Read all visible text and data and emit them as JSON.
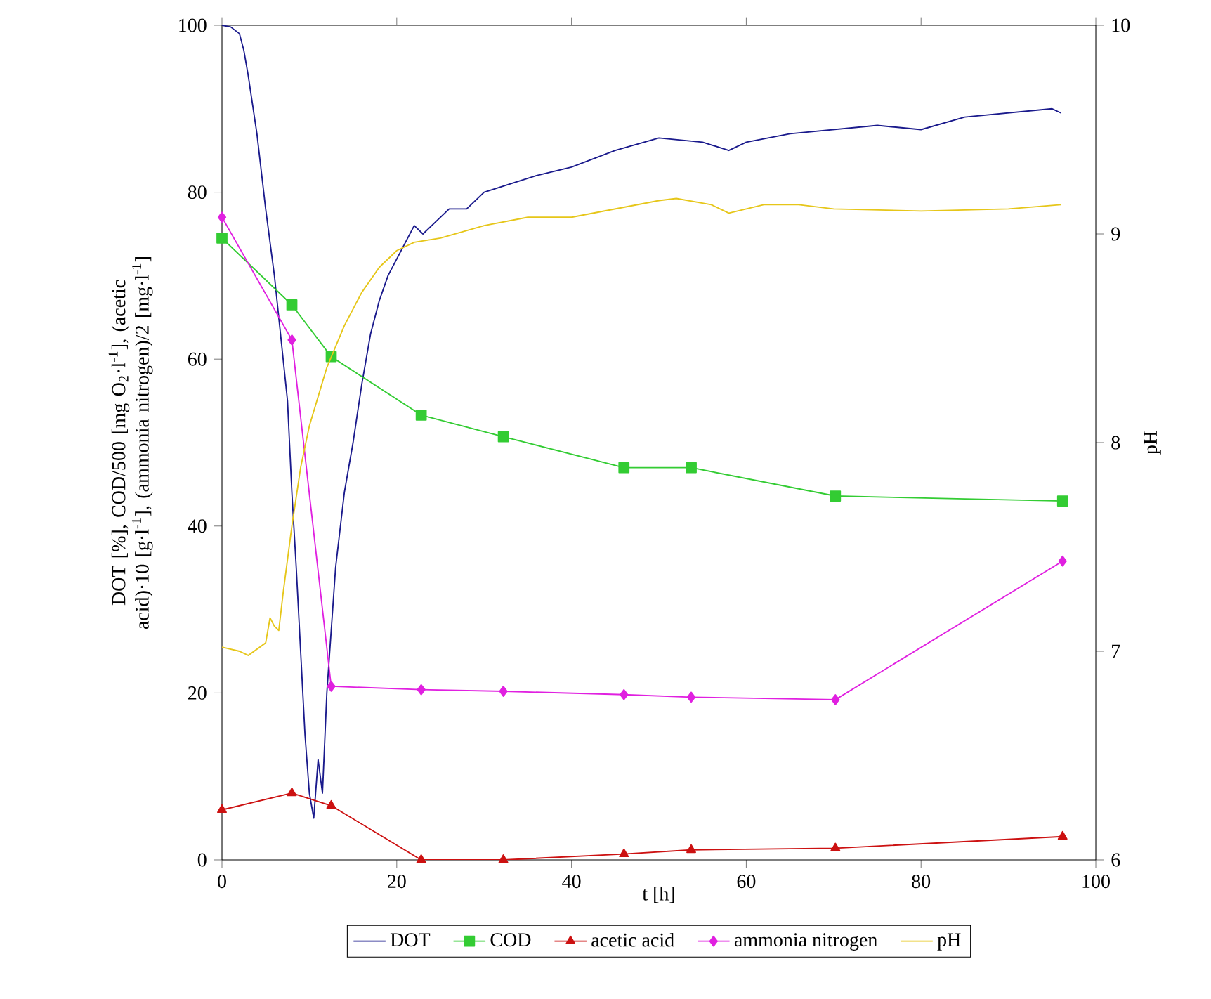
{
  "chart_data": {
    "type": "line",
    "xlabel": "t [h]",
    "ylabel": "DOT [%], COD/500 [mg O$_{2}$·l$^{-1}$], (acetic acid)·10 [g·l$^{-1}$], (ammonia nitrogen)/2 [mg·l$^{-1}$]",
    "y2label": "pH",
    "xlim": [
      0,
      100
    ],
    "xticks": [
      0,
      20,
      40,
      60,
      80,
      100
    ],
    "ylim": [
      0,
      100
    ],
    "yticks": [
      0,
      20,
      40,
      60,
      80,
      100
    ],
    "y2lim": [
      6,
      10
    ],
    "y2ticks": [
      6,
      7,
      8,
      9,
      10
    ],
    "legend": "bottom",
    "grid": false,
    "line_style": "solid",
    "series": [
      {
        "name": "DOT",
        "color": "#1a1a8c",
        "marker": "none",
        "x": [
          0,
          1,
          2,
          2.5,
          3,
          4,
          5,
          6,
          7,
          7.5,
          8,
          8.5,
          9,
          9.5,
          10,
          10.5,
          11,
          11.5,
          12,
          13,
          14,
          15,
          16,
          17,
          18,
          19,
          20,
          21,
          22,
          23,
          24,
          26,
          28,
          30,
          33,
          36,
          40,
          45,
          50,
          55,
          58,
          60,
          65,
          70,
          75,
          80,
          85,
          90,
          95,
          96
        ],
        "values": [
          100,
          99.8,
          99,
          97,
          94,
          87,
          78,
          70,
          60,
          55,
          44,
          35,
          25,
          15,
          8,
          5,
          12,
          8,
          20,
          35,
          44,
          50,
          57,
          63,
          67,
          70,
          72,
          74,
          76,
          75,
          76,
          78,
          78,
          80,
          81,
          82,
          83,
          85,
          86.5,
          86,
          85,
          86,
          87,
          87.5,
          88,
          87.5,
          89,
          89.5,
          90,
          89.5
        ]
      },
      {
        "name": "COD",
        "color": "#33cc33",
        "marker": "square",
        "x": [
          0,
          8,
          12.5,
          22.8,
          32.2,
          46,
          53.7,
          70.2,
          96.2
        ],
        "values": [
          74.5,
          66.5,
          60.3,
          53.3,
          50.7,
          47,
          47,
          43.6,
          43
        ]
      },
      {
        "name": "acetic acid",
        "color": "#cc1111",
        "marker": "triangle",
        "x": [
          0,
          8,
          12.5,
          22.8,
          32.2,
          46,
          53.7,
          70.2,
          96.2
        ],
        "values": [
          6,
          8,
          6.5,
          0,
          0,
          0.7,
          1.2,
          1.4,
          2.8
        ]
      },
      {
        "name": "ammonia nitrogen",
        "color": "#e020e0",
        "marker": "diamond",
        "x": [
          0,
          8,
          12.5,
          22.8,
          32.2,
          46,
          53.7,
          70.2,
          96.2
        ],
        "values": [
          77,
          62.3,
          20.8,
          20.4,
          20.2,
          19.8,
          19.5,
          19.2,
          35.8
        ]
      },
      {
        "name": "pH",
        "color": "#e6c619",
        "marker": "none",
        "axis": "y2",
        "x": [
          0,
          2,
          3,
          5,
          5.5,
          6,
          6.5,
          7,
          8,
          9,
          10,
          12,
          14,
          16,
          18,
          20,
          22,
          25,
          30,
          35,
          40,
          45,
          50,
          52,
          56,
          58,
          62,
          66,
          70,
          80,
          90,
          96
        ],
        "values": [
          7.02,
          7.0,
          6.98,
          7.04,
          7.16,
          7.12,
          7.1,
          7.28,
          7.6,
          7.88,
          8.08,
          8.36,
          8.56,
          8.72,
          8.84,
          8.92,
          8.96,
          8.98,
          9.04,
          9.08,
          9.08,
          9.12,
          9.16,
          9.17,
          9.14,
          9.1,
          9.14,
          9.14,
          9.12,
          9.11,
          9.12,
          9.14
        ]
      }
    ]
  }
}
